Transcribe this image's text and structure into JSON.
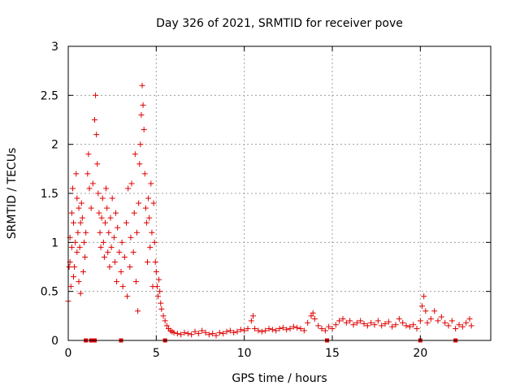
{
  "chart_data": {
    "type": "scatter",
    "title": "Day 326 of 2021, SRMTID for receiver pove",
    "xlabel": "GPS time / hours",
    "ylabel": "SRMTID / TECUs",
    "xlim": [
      0,
      24
    ],
    "ylim": [
      0,
      3
    ],
    "xticks": [
      0,
      5,
      10,
      15,
      20
    ],
    "yticks": [
      0,
      0.5,
      1,
      1.5,
      2,
      2.5,
      3
    ],
    "xtick_labels": [
      "0",
      "5",
      "10",
      "15",
      "20"
    ],
    "ytick_labels": [
      "0",
      "0.5",
      "1",
      "1.5",
      "2",
      "2.5",
      "3"
    ],
    "grid": true,
    "marker": "plus",
    "color": "#e00000",
    "series": [
      {
        "points": [
          [
            0.0,
            0.4
          ],
          [
            0.05,
            0.75
          ],
          [
            0.1,
            0.8
          ],
          [
            0.1,
            1.05
          ],
          [
            0.15,
            0.55
          ],
          [
            0.2,
            1.3
          ],
          [
            0.2,
            0.95
          ],
          [
            0.25,
            1.55
          ],
          [
            0.3,
            0.65
          ],
          [
            0.3,
            1.2
          ],
          [
            0.35,
            0.75
          ],
          [
            0.4,
            1.0
          ],
          [
            0.45,
            1.7
          ],
          [
            0.5,
            1.45
          ],
          [
            0.5,
            0.9
          ],
          [
            0.55,
            1.1
          ],
          [
            0.6,
            0.6
          ],
          [
            0.6,
            1.35
          ],
          [
            0.65,
            0.95
          ],
          [
            0.7,
            1.2
          ],
          [
            0.7,
            0.48
          ],
          [
            0.75,
            1.4
          ],
          [
            0.8,
            1.25
          ],
          [
            0.85,
            0.7
          ],
          [
            0.9,
            1.0
          ],
          [
            0.95,
            0.85
          ],
          [
            1.0,
            1.1
          ],
          [
            1.1,
            1.7
          ],
          [
            1.15,
            1.9
          ],
          [
            1.2,
            1.55
          ],
          [
            1.3,
            1.35
          ],
          [
            1.4,
            1.6
          ],
          [
            1.5,
            2.25
          ],
          [
            1.55,
            2.5
          ],
          [
            1.6,
            2.1
          ],
          [
            1.65,
            1.8
          ],
          [
            1.7,
            1.5
          ],
          [
            1.75,
            1.3
          ],
          [
            1.8,
            1.1
          ],
          [
            1.85,
            0.95
          ],
          [
            1.9,
            1.25
          ],
          [
            1.95,
            1.45
          ],
          [
            2.0,
            1.0
          ],
          [
            2.05,
            0.85
          ],
          [
            2.1,
            1.2
          ],
          [
            2.15,
            1.55
          ],
          [
            2.2,
            1.35
          ],
          [
            2.25,
            0.9
          ],
          [
            2.3,
            1.1
          ],
          [
            2.35,
            0.75
          ],
          [
            2.4,
            1.25
          ],
          [
            2.45,
            0.95
          ],
          [
            2.5,
            1.45
          ],
          [
            2.6,
            1.05
          ],
          [
            2.65,
            0.8
          ],
          [
            2.7,
            1.3
          ],
          [
            2.75,
            0.6
          ],
          [
            2.8,
            1.15
          ],
          [
            2.9,
            0.9
          ],
          [
            3.0,
            0.7
          ],
          [
            3.05,
            1.0
          ],
          [
            3.1,
            0.55
          ],
          [
            3.2,
            0.85
          ],
          [
            3.3,
            1.2
          ],
          [
            3.35,
            0.45
          ],
          [
            3.4,
            1.55
          ],
          [
            3.5,
            0.75
          ],
          [
            3.55,
            1.05
          ],
          [
            3.6,
            1.6
          ],
          [
            3.7,
            0.9
          ],
          [
            3.75,
            1.3
          ],
          [
            3.8,
            1.9
          ],
          [
            3.85,
            0.6
          ],
          [
            3.9,
            1.1
          ],
          [
            3.95,
            0.3
          ],
          [
            4.0,
            1.4
          ],
          [
            4.05,
            1.8
          ],
          [
            4.1,
            2.0
          ],
          [
            4.15,
            2.3
          ],
          [
            4.2,
            2.6
          ],
          [
            4.25,
            2.4
          ],
          [
            4.3,
            2.15
          ],
          [
            4.35,
            1.7
          ],
          [
            4.4,
            1.35
          ],
          [
            4.45,
            1.2
          ],
          [
            4.5,
            0.8
          ],
          [
            4.55,
            1.45
          ],
          [
            4.6,
            1.25
          ],
          [
            4.65,
            0.95
          ],
          [
            4.7,
            1.6
          ],
          [
            4.75,
            1.1
          ],
          [
            4.8,
            0.55
          ],
          [
            4.85,
            1.4
          ],
          [
            4.9,
            1.0
          ],
          [
            4.95,
            0.8
          ],
          [
            5.0,
            0.7
          ],
          [
            5.05,
            0.55
          ],
          [
            5.1,
            0.45
          ],
          [
            5.15,
            0.62
          ],
          [
            5.2,
            0.5
          ],
          [
            5.25,
            0.38
          ],
          [
            5.3,
            0.32
          ],
          [
            5.4,
            0.25
          ],
          [
            5.5,
            0.2
          ],
          [
            5.6,
            0.15
          ],
          [
            5.7,
            0.12
          ],
          [
            5.8,
            0.1
          ],
          [
            5.9,
            0.09
          ],
          [
            6.0,
            0.08
          ],
          [
            6.2,
            0.07
          ],
          [
            6.4,
            0.06
          ],
          [
            6.6,
            0.08
          ],
          [
            6.8,
            0.07
          ],
          [
            7.0,
            0.06
          ],
          [
            7.2,
            0.09
          ],
          [
            7.4,
            0.07
          ],
          [
            7.6,
            0.1
          ],
          [
            7.8,
            0.08
          ],
          [
            8.0,
            0.06
          ],
          [
            8.2,
            0.07
          ],
          [
            8.4,
            0.05
          ],
          [
            8.6,
            0.08
          ],
          [
            8.8,
            0.07
          ],
          [
            9.0,
            0.09
          ],
          [
            9.2,
            0.1
          ],
          [
            9.4,
            0.08
          ],
          [
            9.6,
            0.09
          ],
          [
            9.8,
            0.11
          ],
          [
            10.0,
            0.1
          ],
          [
            10.2,
            0.12
          ],
          [
            10.4,
            0.2
          ],
          [
            10.5,
            0.25
          ],
          [
            10.6,
            0.12
          ],
          [
            10.8,
            0.1
          ],
          [
            11.0,
            0.09
          ],
          [
            11.2,
            0.1
          ],
          [
            11.4,
            0.12
          ],
          [
            11.6,
            0.11
          ],
          [
            11.8,
            0.1
          ],
          [
            12.0,
            0.12
          ],
          [
            12.2,
            0.13
          ],
          [
            12.4,
            0.11
          ],
          [
            12.6,
            0.12
          ],
          [
            12.8,
            0.14
          ],
          [
            13.0,
            0.13
          ],
          [
            13.2,
            0.12
          ],
          [
            13.4,
            0.1
          ],
          [
            13.6,
            0.18
          ],
          [
            13.8,
            0.25
          ],
          [
            13.9,
            0.28
          ],
          [
            14.0,
            0.22
          ],
          [
            14.2,
            0.15
          ],
          [
            14.4,
            0.12
          ],
          [
            14.6,
            0.1
          ],
          [
            14.8,
            0.14
          ],
          [
            15.0,
            0.12
          ],
          [
            15.2,
            0.16
          ],
          [
            15.4,
            0.2
          ],
          [
            15.6,
            0.22
          ],
          [
            15.8,
            0.18
          ],
          [
            16.0,
            0.2
          ],
          [
            16.2,
            0.16
          ],
          [
            16.4,
            0.18
          ],
          [
            16.6,
            0.2
          ],
          [
            16.8,
            0.17
          ],
          [
            17.0,
            0.15
          ],
          [
            17.2,
            0.18
          ],
          [
            17.4,
            0.16
          ],
          [
            17.6,
            0.2
          ],
          [
            17.8,
            0.15
          ],
          [
            18.0,
            0.17
          ],
          [
            18.2,
            0.19
          ],
          [
            18.4,
            0.14
          ],
          [
            18.6,
            0.16
          ],
          [
            18.8,
            0.22
          ],
          [
            19.0,
            0.18
          ],
          [
            19.2,
            0.15
          ],
          [
            19.4,
            0.14
          ],
          [
            19.6,
            0.16
          ],
          [
            19.8,
            0.12
          ],
          [
            20.0,
            0.2
          ],
          [
            20.1,
            0.35
          ],
          [
            20.2,
            0.45
          ],
          [
            20.3,
            0.3
          ],
          [
            20.4,
            0.18
          ],
          [
            20.6,
            0.22
          ],
          [
            20.8,
            0.3
          ],
          [
            21.0,
            0.2
          ],
          [
            21.2,
            0.24
          ],
          [
            21.4,
            0.18
          ],
          [
            21.6,
            0.15
          ],
          [
            21.8,
            0.2
          ],
          [
            22.0,
            0.12
          ],
          [
            22.2,
            0.16
          ],
          [
            22.4,
            0.14
          ],
          [
            22.6,
            0.18
          ],
          [
            22.8,
            0.22
          ],
          [
            22.9,
            0.15
          ]
        ],
        "zero_points": [
          1.0,
          1.3,
          1.4,
          1.5,
          3.0,
          5.5,
          14.7,
          20.0,
          22.0
        ]
      }
    ]
  }
}
